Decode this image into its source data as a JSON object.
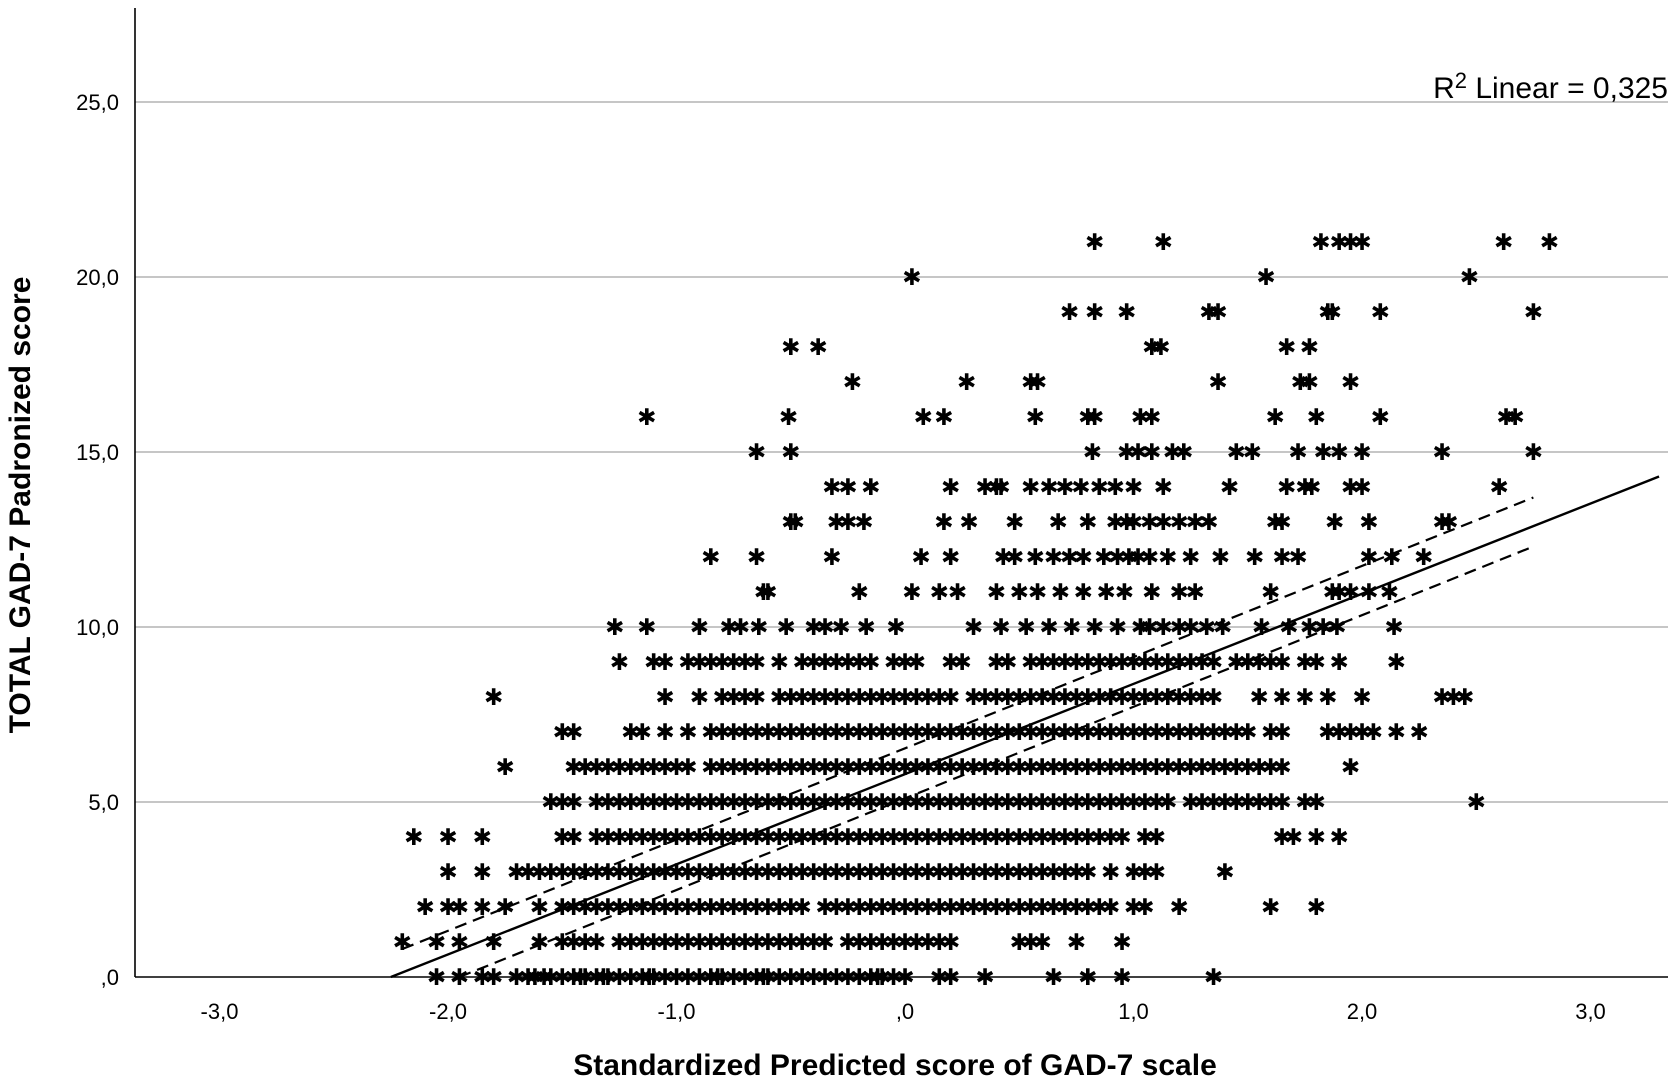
{
  "chart_data": {
    "type": "scatter",
    "title": "",
    "xlabel": "Standardized Predicted score of GAD-7 scale",
    "ylabel": "TOTAL GAD-7 Padronized score",
    "xlim": [
      -3.4,
      3.3
    ],
    "ylim": [
      0,
      28
    ],
    "x_ticks": [
      -3,
      -2,
      -1,
      0,
      1,
      2,
      3
    ],
    "x_tick_labels": [
      "-3,0",
      "-2,0",
      "-1,0",
      ",0",
      "1,0",
      "2,0",
      "3,0"
    ],
    "y_ticks": [
      0,
      5,
      10,
      15,
      20,
      25
    ],
    "y_tick_labels": [
      ",0",
      "5,0",
      "10,0",
      "15,0",
      "20,0",
      "25,0"
    ],
    "grid": "horizontal",
    "marker": "✱",
    "annotation": {
      "r2_symbol": "R",
      "r2_sup": "2",
      "text": " Linear = 0,325"
    },
    "fit_line": {
      "x1": -2.25,
      "x2": 3.3,
      "y1": 0.0,
      "y2": 14.3
    },
    "ci_upper": {
      "x1": -2.2,
      "x2": 2.75,
      "y1": 0.8,
      "y2": 13.7
    },
    "ci_lower": {
      "x1": -1.95,
      "x2": 2.75,
      "y1": 0.0,
      "y2": 12.3
    },
    "rows": [
      {
        "y": 0,
        "xs": [
          -2.05,
          -1.95,
          -1.85,
          -1.8,
          -1.7,
          -1.65,
          -1.62,
          -1.58,
          -1.55,
          -1.5,
          -1.45,
          -1.42,
          -1.4,
          -1.35,
          -1.32,
          -1.3,
          -1.25,
          -1.2,
          -1.15,
          -1.12,
          -1.1,
          -1.05,
          -1.0,
          -0.95,
          -0.9,
          -0.85,
          -0.82,
          -0.8,
          -0.75,
          -0.7,
          -0.65,
          -0.62,
          -0.6,
          -0.55,
          -0.5,
          -0.45,
          -0.4,
          -0.35,
          -0.3,
          -0.25,
          -0.2,
          -0.15,
          -0.12,
          -0.1,
          -0.05,
          0.0,
          0.15,
          0.2,
          0.35,
          0.65,
          0.8,
          0.95,
          1.35
        ]
      },
      {
        "y": 1,
        "xs": [
          -2.2,
          -2.05,
          -1.95,
          -1.8,
          -1.6,
          -1.5,
          -1.45,
          -1.4,
          -1.35,
          -1.25,
          -1.2,
          -1.15,
          -1.1,
          -1.05,
          -1.0,
          -0.95,
          -0.9,
          -0.85,
          -0.8,
          -0.75,
          -0.7,
          -0.65,
          -0.6,
          -0.55,
          -0.5,
          -0.45,
          -0.4,
          -0.35,
          -0.25,
          -0.2,
          -0.15,
          -0.1,
          -0.05,
          0.0,
          0.05,
          0.1,
          0.15,
          0.2,
          0.5,
          0.55,
          0.6,
          0.75,
          0.95
        ]
      },
      {
        "y": 2,
        "xs": [
          -2.1,
          -2.0,
          -1.95,
          -1.85,
          -1.75,
          -1.6,
          -1.5,
          -1.45,
          -1.4,
          -1.35,
          -1.3,
          -1.25,
          -1.2,
          -1.15,
          -1.1,
          -1.05,
          -1.0,
          -0.95,
          -0.9,
          -0.85,
          -0.8,
          -0.75,
          -0.7,
          -0.65,
          -0.6,
          -0.55,
          -0.5,
          -0.45,
          -0.35,
          -0.3,
          -0.25,
          -0.2,
          -0.15,
          -0.1,
          -0.05,
          0.0,
          0.05,
          0.1,
          0.15,
          0.2,
          0.25,
          0.3,
          0.35,
          0.4,
          0.45,
          0.5,
          0.55,
          0.6,
          0.65,
          0.7,
          0.75,
          0.8,
          0.85,
          0.9,
          1.0,
          1.05,
          1.2,
          1.6,
          1.8
        ]
      },
      {
        "y": 3,
        "xs": [
          -2.0,
          -1.85,
          -1.7,
          -1.65,
          -1.6,
          -1.55,
          -1.5,
          -1.45,
          -1.4,
          -1.35,
          -1.3,
          -1.25,
          -1.2,
          -1.15,
          -1.1,
          -1.05,
          -1.0,
          -0.95,
          -0.9,
          -0.85,
          -0.8,
          -0.75,
          -0.7,
          -0.65,
          -0.6,
          -0.55,
          -0.5,
          -0.45,
          -0.4,
          -0.35,
          -0.3,
          -0.25,
          -0.2,
          -0.15,
          -0.1,
          -0.05,
          0.0,
          0.05,
          0.1,
          0.15,
          0.2,
          0.25,
          0.3,
          0.35,
          0.4,
          0.45,
          0.5,
          0.55,
          0.6,
          0.65,
          0.7,
          0.75,
          0.8,
          0.9,
          1.0,
          1.05,
          1.1,
          1.4
        ]
      },
      {
        "y": 4,
        "xs": [
          -2.15,
          -2.0,
          -1.85,
          -1.5,
          -1.45,
          -1.35,
          -1.3,
          -1.25,
          -1.2,
          -1.15,
          -1.1,
          -1.05,
          -1.0,
          -0.95,
          -0.9,
          -0.85,
          -0.8,
          -0.75,
          -0.7,
          -0.65,
          -0.6,
          -0.55,
          -0.5,
          -0.45,
          -0.4,
          -0.35,
          -0.3,
          -0.25,
          -0.2,
          -0.15,
          -0.1,
          -0.05,
          0.0,
          0.05,
          0.1,
          0.15,
          0.2,
          0.25,
          0.3,
          0.35,
          0.4,
          0.45,
          0.5,
          0.55,
          0.6,
          0.65,
          0.7,
          0.75,
          0.8,
          0.85,
          0.9,
          0.95,
          1.05,
          1.1,
          1.65,
          1.7,
          1.8,
          1.9
        ]
      },
      {
        "y": 5,
        "xs": [
          -1.55,
          -1.5,
          -1.45,
          -1.35,
          -1.3,
          -1.25,
          -1.2,
          -1.15,
          -1.1,
          -1.05,
          -1.0,
          -0.95,
          -0.9,
          -0.85,
          -0.8,
          -0.75,
          -0.7,
          -0.65,
          -0.6,
          -0.55,
          -0.5,
          -0.45,
          -0.4,
          -0.35,
          -0.3,
          -0.25,
          -0.2,
          -0.15,
          -0.1,
          -0.05,
          0.0,
          0.05,
          0.1,
          0.15,
          0.2,
          0.25,
          0.3,
          0.35,
          0.4,
          0.45,
          0.5,
          0.55,
          0.6,
          0.65,
          0.7,
          0.75,
          0.8,
          0.85,
          0.9,
          0.95,
          1.0,
          1.05,
          1.1,
          1.15,
          1.25,
          1.3,
          1.35,
          1.4,
          1.45,
          1.5,
          1.55,
          1.6,
          1.65,
          1.75,
          1.8,
          2.5
        ]
      },
      {
        "y": 6,
        "xs": [
          -1.75,
          -1.45,
          -1.4,
          -1.35,
          -1.3,
          -1.25,
          -1.2,
          -1.15,
          -1.1,
          -1.05,
          -1.0,
          -0.95,
          -0.85,
          -0.8,
          -0.75,
          -0.7,
          -0.65,
          -0.6,
          -0.55,
          -0.5,
          -0.45,
          -0.4,
          -0.35,
          -0.3,
          -0.25,
          -0.2,
          -0.15,
          -0.1,
          -0.05,
          0.0,
          0.05,
          0.1,
          0.15,
          0.2,
          0.25,
          0.3,
          0.35,
          0.4,
          0.45,
          0.5,
          0.55,
          0.6,
          0.65,
          0.7,
          0.75,
          0.8,
          0.85,
          0.9,
          0.95,
          1.0,
          1.05,
          1.1,
          1.15,
          1.2,
          1.25,
          1.3,
          1.35,
          1.4,
          1.45,
          1.5,
          1.55,
          1.6,
          1.65,
          1.95
        ]
      },
      {
        "y": 7,
        "xs": [
          -1.5,
          -1.45,
          -1.2,
          -1.15,
          -1.05,
          -0.95,
          -0.85,
          -0.8,
          -0.75,
          -0.7,
          -0.65,
          -0.6,
          -0.55,
          -0.5,
          -0.45,
          -0.4,
          -0.35,
          -0.3,
          -0.25,
          -0.2,
          -0.15,
          -0.1,
          -0.05,
          0.0,
          0.05,
          0.1,
          0.15,
          0.2,
          0.25,
          0.3,
          0.35,
          0.4,
          0.45,
          0.5,
          0.55,
          0.6,
          0.65,
          0.7,
          0.75,
          0.8,
          0.85,
          0.9,
          0.95,
          1.0,
          1.05,
          1.1,
          1.15,
          1.2,
          1.25,
          1.3,
          1.35,
          1.4,
          1.45,
          1.5,
          1.6,
          1.65,
          1.85,
          1.9,
          1.95,
          2.0,
          2.05,
          2.15,
          2.25
        ]
      },
      {
        "y": 8,
        "xs": [
          -1.8,
          -1.05,
          -0.9,
          -0.8,
          -0.75,
          -0.7,
          -0.65,
          -0.55,
          -0.5,
          -0.45,
          -0.4,
          -0.35,
          -0.3,
          -0.25,
          -0.2,
          -0.15,
          -0.1,
          -0.05,
          0.0,
          0.05,
          0.1,
          0.15,
          0.2,
          0.3,
          0.35,
          0.4,
          0.45,
          0.5,
          0.55,
          0.6,
          0.65,
          0.7,
          0.75,
          0.8,
          0.85,
          0.9,
          0.95,
          1.0,
          1.05,
          1.1,
          1.15,
          1.2,
          1.25,
          1.3,
          1.35,
          1.55,
          1.65,
          1.75,
          1.85,
          2.0,
          2.35,
          2.4,
          2.45
        ]
      },
      {
        "y": 9,
        "xs": [
          -1.25,
          -1.1,
          -1.05,
          -0.95,
          -0.9,
          -0.85,
          -0.8,
          -0.75,
          -0.7,
          -0.65,
          -0.55,
          -0.45,
          -0.4,
          -0.35,
          -0.3,
          -0.25,
          -0.2,
          -0.15,
          -0.05,
          0.0,
          0.05,
          0.2,
          0.25,
          0.4,
          0.45,
          0.55,
          0.6,
          0.65,
          0.7,
          0.75,
          0.8,
          0.85,
          0.9,
          0.95,
          1.0,
          1.05,
          1.1,
          1.15,
          1.2,
          1.25,
          1.3,
          1.35,
          1.45,
          1.5,
          1.55,
          1.6,
          1.65,
          1.75,
          1.8,
          1.9,
          2.15
        ]
      },
      {
        "y": 10,
        "xs": [
          -1.27,
          -1.13,
          -0.9,
          -0.77,
          -0.72,
          -0.64,
          -0.52,
          -0.4,
          -0.35,
          -0.28,
          -0.17,
          -0.04,
          0.3,
          0.42,
          0.53,
          0.63,
          0.73,
          0.83,
          0.93,
          1.03,
          1.07,
          1.13,
          1.2,
          1.25,
          1.32,
          1.39,
          1.56,
          1.68,
          1.77,
          1.83,
          1.89,
          2.14
        ]
      },
      {
        "y": 11,
        "xs": [
          -0.62,
          -0.6,
          -0.2,
          0.03,
          0.15,
          0.23,
          0.4,
          0.5,
          0.58,
          0.68,
          0.78,
          0.88,
          0.96,
          1.08,
          1.2,
          1.27,
          1.6,
          1.87,
          1.9,
          1.95,
          2.03,
          2.12
        ]
      },
      {
        "y": 12,
        "xs": [
          -0.85,
          -0.65,
          -0.32,
          0.07,
          0.2,
          0.43,
          0.48,
          0.57,
          0.65,
          0.72,
          0.78,
          0.87,
          0.93,
          0.98,
          1.02,
          1.07,
          1.15,
          1.25,
          1.38,
          1.53,
          1.65,
          1.72,
          2.03,
          2.13,
          2.27
        ]
      },
      {
        "y": 13,
        "xs": [
          -0.5,
          -0.48,
          -0.3,
          -0.25,
          -0.18,
          0.17,
          0.28,
          0.48,
          0.67,
          0.8,
          0.92,
          0.97,
          1.0,
          1.07,
          1.13,
          1.2,
          1.27,
          1.33,
          1.62,
          1.65,
          1.88,
          2.03,
          2.35,
          2.38
        ]
      },
      {
        "y": 14,
        "xs": [
          -0.32,
          -0.25,
          -0.15,
          0.2,
          0.35,
          0.4,
          0.42,
          0.55,
          0.63,
          0.7,
          0.77,
          0.85,
          0.92,
          1.0,
          1.13,
          1.42,
          1.67,
          1.75,
          1.78,
          1.95,
          2.0,
          2.6
        ]
      },
      {
        "y": 15,
        "xs": [
          -0.65,
          -0.5,
          0.82,
          0.97,
          1.02,
          1.08,
          1.17,
          1.22,
          1.45,
          1.52,
          1.72,
          1.83,
          1.9,
          2.0,
          2.35,
          2.75
        ]
      },
      {
        "y": 16,
        "xs": [
          -1.13,
          -0.51,
          0.08,
          0.17,
          0.57,
          0.8,
          0.83,
          1.03,
          1.08,
          1.62,
          1.8,
          2.08,
          2.63,
          2.67
        ]
      },
      {
        "y": 17,
        "xs": [
          -0.23,
          0.27,
          0.55,
          0.58,
          1.37,
          1.73,
          1.77,
          1.95
        ]
      },
      {
        "y": 18,
        "xs": [
          -0.5,
          -0.38,
          1.08,
          1.12,
          1.67,
          1.77
        ]
      },
      {
        "y": 19,
        "xs": [
          0.72,
          0.83,
          0.97,
          1.33,
          1.37,
          1.85,
          1.87,
          2.08,
          2.75
        ]
      },
      {
        "y": 20,
        "xs": [
          0.03,
          1.58,
          2.47
        ]
      },
      {
        "y": 21,
        "xs": [
          0.83,
          1.13,
          1.82,
          1.9,
          1.95,
          2.0,
          2.62,
          2.82
        ]
      }
    ]
  }
}
